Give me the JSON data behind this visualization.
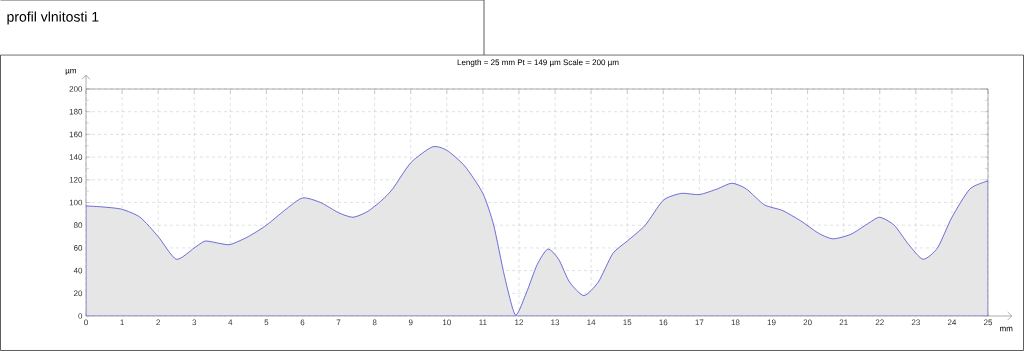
{
  "chart_data": {
    "type": "area",
    "title": "profil vlnitosti 1",
    "subtitle": "Length = 25 mm  Pt = 149 µm  Scale = 200 µm",
    "xlabel": "mm",
    "ylabel": "µm",
    "x": [
      0,
      0.5,
      1,
      1.5,
      2,
      2.5,
      3,
      3.3,
      3.7,
      4,
      4.5,
      5,
      5.5,
      6,
      6.5,
      7,
      7.4,
      7.8,
      8.2,
      8.5,
      9,
      9.6,
      10,
      10.5,
      11,
      11.3,
      11.6,
      11.9,
      12.2,
      12.5,
      12.8,
      13.1,
      13.4,
      13.8,
      14.2,
      14.6,
      15,
      15.5,
      16,
      16.5,
      17,
      17.5,
      17.9,
      18.3,
      18.8,
      19.3,
      19.8,
      20.3,
      20.7,
      21.2,
      21.7,
      22,
      22.4,
      22.8,
      23.2,
      23.6,
      24,
      24.5,
      25
    ],
    "series": [
      {
        "color": "#e6e6e6",
        "values": [
          97,
          96,
          94,
          87,
          70,
          50,
          60,
          66,
          64,
          63,
          70,
          80,
          93,
          104,
          100,
          91,
          87,
          92,
          102,
          112,
          135,
          149,
          146,
          132,
          108,
          80,
          35,
          1,
          20,
          45,
          59,
          50,
          30,
          18,
          30,
          55,
          66,
          80,
          102,
          108,
          107,
          112,
          117,
          112,
          98,
          93,
          84,
          73,
          68,
          72,
          82,
          87,
          80,
          63,
          50,
          60,
          87,
          112,
          119
        ]
      }
    ],
    "xlim": [
      0,
      25
    ],
    "ylim": [
      0,
      200
    ],
    "xticks": [
      0,
      1,
      2,
      3,
      4,
      5,
      6,
      7,
      8,
      9,
      10,
      11,
      12,
      13,
      14,
      15,
      16,
      17,
      18,
      19,
      20,
      21,
      22,
      23,
      24,
      25
    ],
    "yticks": [
      0,
      20,
      40,
      60,
      80,
      100,
      120,
      140,
      160,
      180,
      200
    ],
    "grid": true
  }
}
